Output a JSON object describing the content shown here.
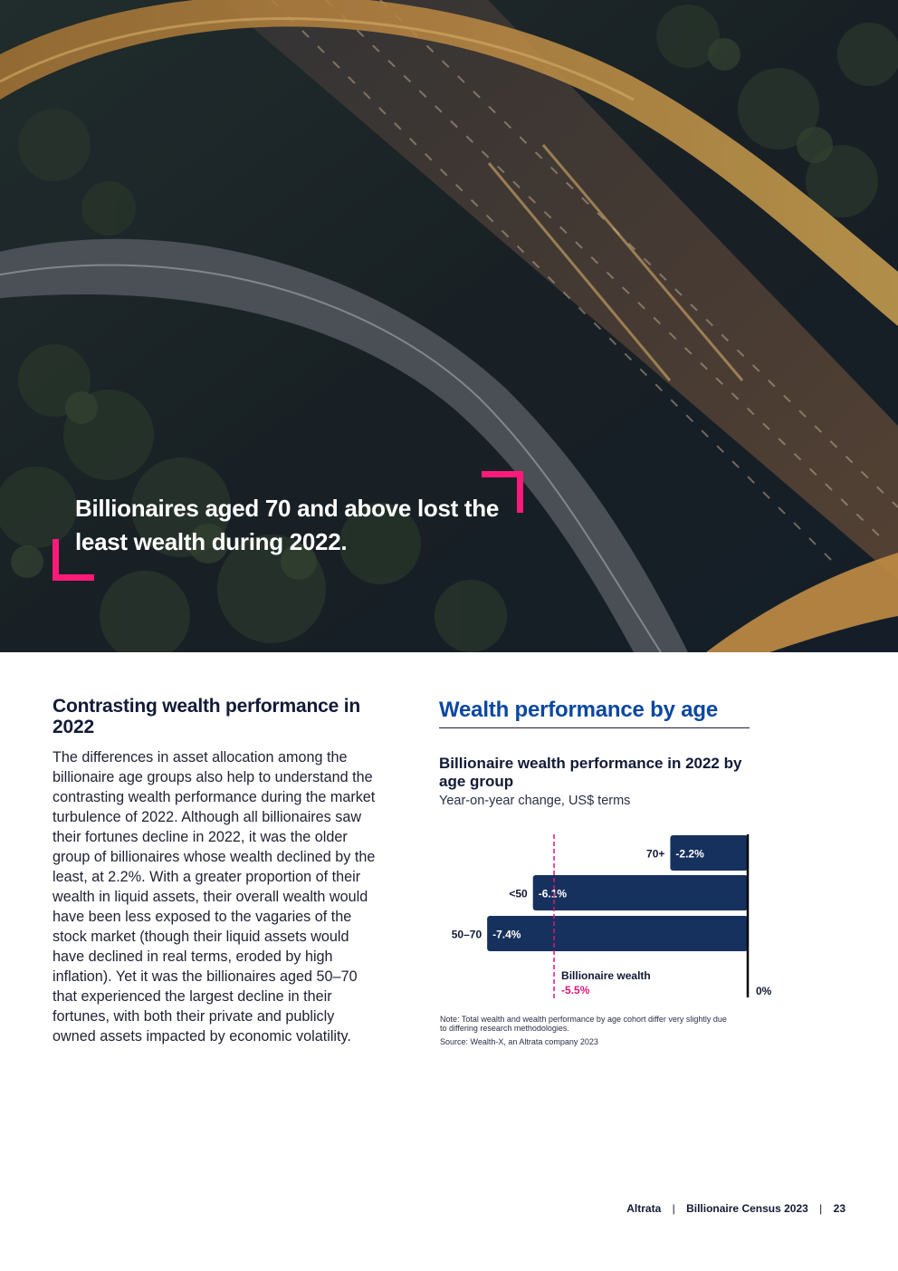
{
  "hero": {
    "image_description": "aerial photograph of curved highway interchange at dusk",
    "quote": "Billionaires aged 70 and above lost the least wealth during 2022.",
    "accent_color": "#ff1a7a"
  },
  "article": {
    "heading": "Contrasting wealth performance in 2022",
    "body": "The differences in asset allocation among the billionaire age groups also help to understand the contrasting wealth performance during the market turbulence of 2022. Although all billionaires saw their fortunes decline in 2022, it was the older group of billionaires whose wealth declined by the least, at 2.2%. With a greater proportion of their wealth in liquid assets, their overall wealth would have been less exposed to the vagaries of the stock market (though their liquid assets would have declined in real terms, eroded by high inflation). Yet it was the billionaires aged 50–70 that experienced the largest decline in their fortunes, with both their private and publicly owned assets impacted by economic volatility."
  },
  "section": {
    "title": "Wealth performance by age"
  },
  "chart_data": {
    "type": "bar",
    "orientation": "horizontal",
    "title": "Billionaire wealth performance in 2022 by age group",
    "subtitle": "Year-on-year change, US$ terms",
    "categories": [
      "70+",
      "<50",
      "50–70"
    ],
    "values": [
      -2.2,
      -6.1,
      -7.4
    ],
    "value_labels": [
      "-2.2%",
      "-6.1%",
      "-7.4%"
    ],
    "xlim": [
      -8.2,
      0
    ],
    "zero_label": "0%",
    "reference_line": {
      "label": "Billionaire wealth",
      "value": -5.5,
      "value_label": "-5.5%"
    },
    "bar_color": "#17315e",
    "reference_color": "#e0157a",
    "note": "Note: Total wealth and wealth performance by age cohort differ very slightly due to differing research methodologies.",
    "source": "Source: Wealth-X, an Altrata company 2023"
  },
  "footer": {
    "brand": "Altrata",
    "publication": "Billionaire Census 2023",
    "page_number": "23",
    "separator": "|"
  }
}
